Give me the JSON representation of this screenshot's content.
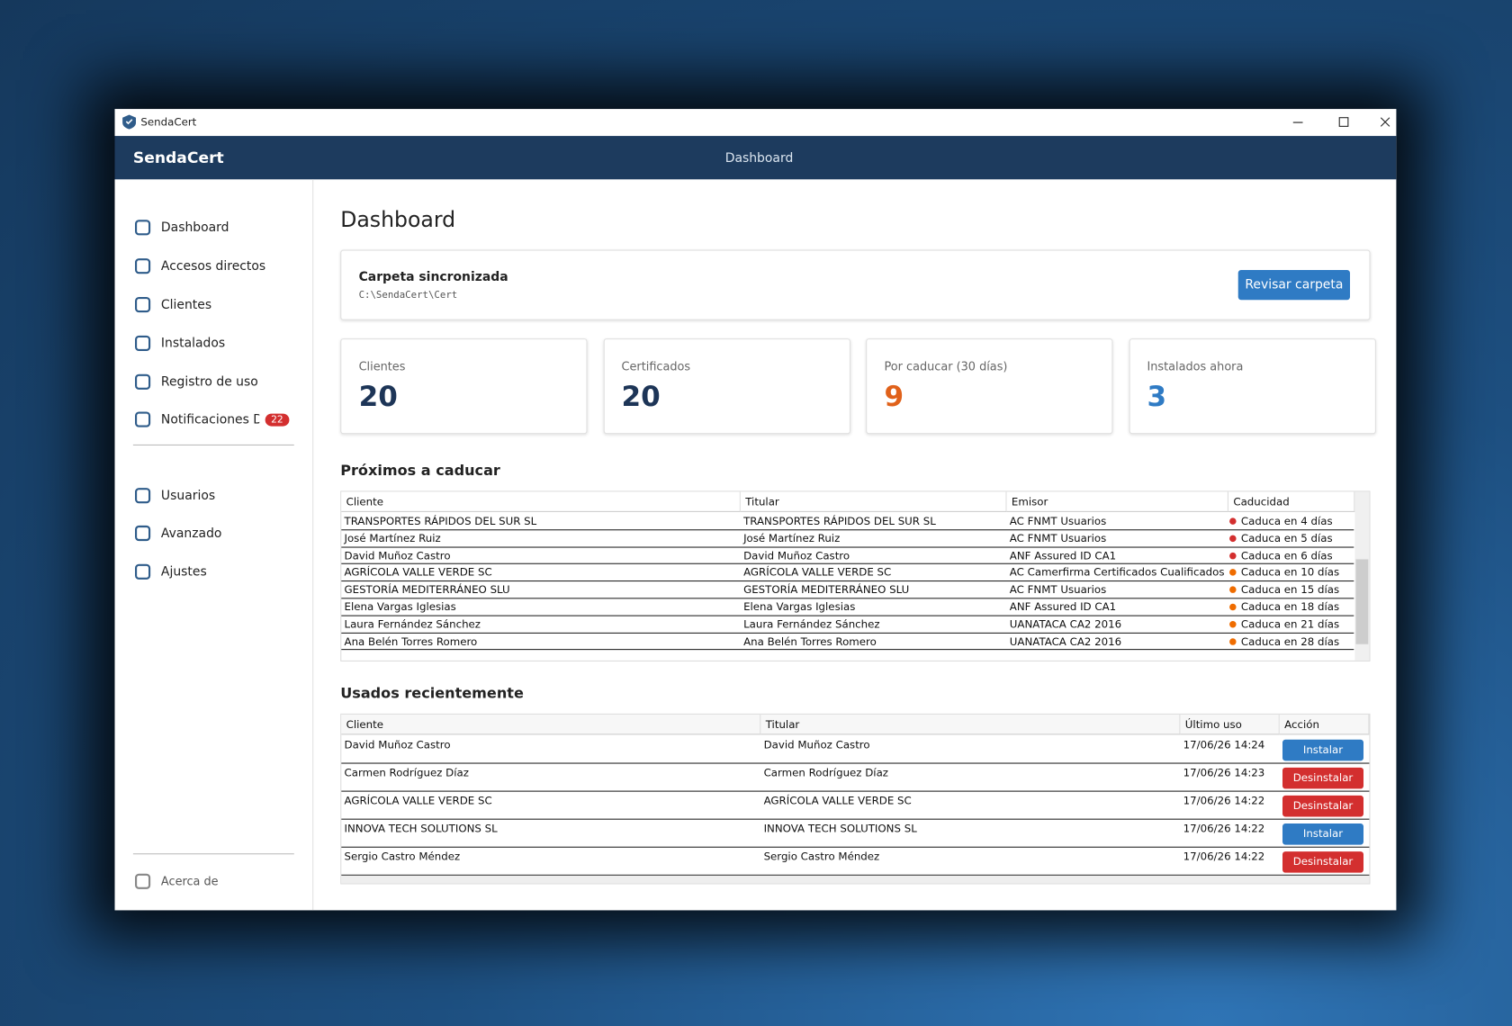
{
  "window": {
    "title": "SendaCert"
  },
  "header": {
    "brand": "SendaCert",
    "page": "Dashboard"
  },
  "nav": {
    "main": [
      "Dashboard",
      "Accesos directos",
      "Clientes",
      "Instalados",
      "Registro de uso",
      "Notificaciones DE"
    ],
    "badge": 22,
    "admin": [
      "Usuarios",
      "Avanzado",
      "Ajustes"
    ],
    "about": "Acerca de"
  },
  "main": {
    "title": "Dashboard",
    "folder": {
      "label": "Carpeta sincronizada",
      "path": "C:\\SendaCert\\Cert",
      "button": "Revisar carpeta"
    },
    "stats": [
      {
        "label": "Clientes",
        "value": 20,
        "color": "#1d3557"
      },
      {
        "label": "Certificados",
        "value": 20,
        "color": "#1d3557"
      },
      {
        "label": "Por caducar (30 días)",
        "value": 9,
        "color": "#e0611a"
      },
      {
        "label": "Instalados ahora",
        "value": 3,
        "color": "#2f7bc4"
      }
    ],
    "expiring": {
      "title": "Próximos a caducar",
      "headers": [
        "Cliente",
        "Titular",
        "Emisor",
        "Caducidad"
      ],
      "rows": [
        {
          "cliente": "TRANSPORTES RÁPIDOS DEL SUR SL",
          "titular": "TRANSPORTES RÁPIDOS DEL SUR SL",
          "emisor": "AC FNMT Usuarios",
          "caducidad": "Caduca en 4 días",
          "color": "#d32f2f"
        },
        {
          "cliente": "José Martínez Ruiz",
          "titular": "José Martínez Ruiz",
          "emisor": "AC FNMT Usuarios",
          "caducidad": "Caduca en 5 días",
          "color": "#d32f2f"
        },
        {
          "cliente": "David Muñoz Castro",
          "titular": "David Muñoz Castro",
          "emisor": "ANF Assured ID CA1",
          "caducidad": "Caduca en 6 días",
          "color": "#d32f2f"
        },
        {
          "cliente": "AGRÍCOLA VALLE VERDE SC",
          "titular": "AGRÍCOLA VALLE VERDE SC",
          "emisor": "AC Camerfirma Certificados Cualificados",
          "caducidad": "Caduca en 10 días",
          "color": "#ef6c00"
        },
        {
          "cliente": "GESTORÍA MEDITERRÁNEO SLU",
          "titular": "GESTORÍA MEDITERRÁNEO SLU",
          "emisor": "AC FNMT Usuarios",
          "caducidad": "Caduca en 15 días",
          "color": "#ef6c00"
        },
        {
          "cliente": "Elena Vargas Iglesias",
          "titular": "Elena Vargas Iglesias",
          "emisor": "ANF Assured ID CA1",
          "caducidad": "Caduca en 18 días",
          "color": "#ef6c00"
        },
        {
          "cliente": "Laura Fernández Sánchez",
          "titular": "Laura Fernández Sánchez",
          "emisor": "UANATACA CA2 2016",
          "caducidad": "Caduca en 21 días",
          "color": "#ef6c00"
        },
        {
          "cliente": "Ana Belén Torres Romero",
          "titular": "Ana Belén Torres Romero",
          "emisor": "UANATACA CA2 2016",
          "caducidad": "Caduca en 28 días",
          "color": "#ef6c00"
        }
      ]
    },
    "recent": {
      "title": "Usados recientemente",
      "headers": [
        "Cliente",
        "Titular",
        "Último uso",
        "Acción"
      ],
      "rows": [
        {
          "cliente": "David Muñoz Castro",
          "titular": "David Muñoz Castro",
          "ultimo_uso": "17/06/26 14:24",
          "accion": "Instalar",
          "color": "#2f7bc4"
        },
        {
          "cliente": "Carmen Rodríguez Díaz",
          "titular": "Carmen Rodríguez Díaz",
          "ultimo_uso": "17/06/26 14:23",
          "accion": "Desinstalar",
          "color": "#d32f2f"
        },
        {
          "cliente": "AGRÍCOLA VALLE VERDE SC",
          "titular": "AGRÍCOLA VALLE VERDE SC",
          "ultimo_uso": "17/06/26 14:22",
          "accion": "Desinstalar",
          "color": "#d32f2f"
        },
        {
          "cliente": "INNOVA TECH SOLUTIONS SL",
          "titular": "INNOVA TECH SOLUTIONS SL",
          "ultimo_uso": "17/06/26 14:22",
          "accion": "Instalar",
          "color": "#2f7bc4"
        },
        {
          "cliente": "Sergio Castro Méndez",
          "titular": "Sergio Castro Méndez",
          "ultimo_uso": "17/06/26 14:22",
          "accion": "Desinstalar",
          "color": "#d32f2f"
        }
      ]
    }
  }
}
